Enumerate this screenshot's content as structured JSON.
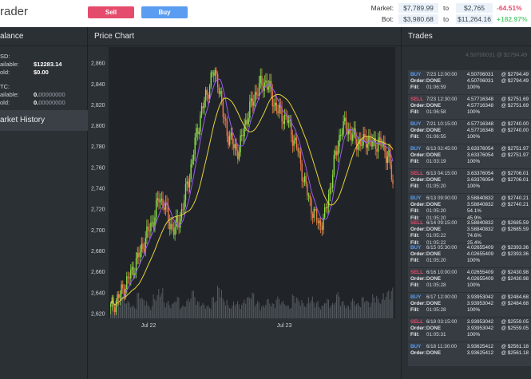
{
  "header": {
    "brand": "rader",
    "sell_label": "Sell",
    "buy_label": "Buy",
    "market_label": "Market:",
    "market_from": "$7,789.99",
    "market_to_word": "to",
    "market_to": "$2,765",
    "market_pct": "-64.51%",
    "bot_label": "Bot:",
    "bot_from": "$3,980.68",
    "bot_to_word": "to",
    "bot_to": "$11,264.16",
    "bot_pct": "+182.97%",
    "colors": {
      "negative": "#e54b6c",
      "positive": "#5fd07a"
    }
  },
  "balance": {
    "title": "alance",
    "usd_heading": "SD:",
    "usd_available_label": "ailable:",
    "usd_available": "$12283.14",
    "usd_hold_label": "old:",
    "usd_hold": "$0.00",
    "btc_heading": "TC:",
    "btc_available_label": "ailable:",
    "btc_available_strong": "0.",
    "btc_available_rest": "00000000",
    "btc_hold_label": "old:",
    "btc_hold_strong": "0.",
    "btc_hold_rest": "00000000"
  },
  "market_history": {
    "title": "arket History"
  },
  "chart": {
    "title": "Price Chart",
    "y_ticks": [
      "2,860",
      "2,840",
      "2,820",
      "2,800",
      "2,780",
      "2,760",
      "2,740",
      "2,720",
      "2,700",
      "2,680",
      "2,660",
      "2,640",
      "2,620"
    ],
    "x_ticks": [
      "Jul 22",
      "Jul 23"
    ]
  },
  "chart_data": {
    "type": "candlestick",
    "ylim": [
      2615,
      2875
    ],
    "y_tick_values": [
      2860,
      2840,
      2820,
      2800,
      2780,
      2760,
      2740,
      2720,
      2700,
      2680,
      2660,
      2640,
      2620
    ],
    "close_path": [
      2625,
      2632,
      2640,
      2650,
      2660,
      2672,
      2685,
      2698,
      2710,
      2730,
      2725,
      2705,
      2700,
      2712,
      2735,
      2760,
      2790,
      2815,
      2830,
      2850,
      2845,
      2810,
      2790,
      2780,
      2775,
      2800,
      2815,
      2830,
      2838,
      2842,
      2830,
      2815,
      2810,
      2805,
      2790,
      2775,
      2750,
      2730,
      2715,
      2705,
      2712,
      2740,
      2770,
      2795,
      2800,
      2790,
      2785,
      2782,
      2788,
      2780,
      2785,
      2778,
      2770,
      2730
    ],
    "volume_levels": [
      0.2,
      0.35,
      0.5,
      0.4,
      0.3,
      0.6,
      0.45,
      0.3,
      0.55,
      0.7,
      0.4,
      0.35,
      0.5,
      0.3,
      0.45,
      0.65,
      0.4,
      0.35,
      0.3,
      0.5,
      0.75,
      0.45,
      0.3,
      0.4,
      0.35,
      0.5,
      0.6,
      0.4,
      0.3,
      0.45,
      0.35,
      0.5,
      0.4,
      0.3,
      0.55,
      0.45,
      0.35,
      0.5,
      0.4,
      0.3,
      0.45,
      0.35,
      0.6,
      0.4,
      0.3,
      0.45,
      0.35,
      0.5,
      0.4,
      0.55,
      0.45,
      0.6,
      0.7,
      0.95
    ],
    "colors": {
      "up": "#8de04a",
      "down": "#f07a4a",
      "ma_fast": "#9a5cf0",
      "ma_slow": "#e8d23a",
      "volume": "#555b61"
    }
  },
  "trades": {
    "title": "Trades",
    "ghost": "4.50706031 @ $2794.49",
    "order_label": "Order:",
    "fill_label": "Fill:",
    "at": "@",
    "items": [
      {
        "side": "BUY",
        "time": "7/23 12:00:00",
        "lines": [
          [
            "4.50706031",
            "$2794.49"
          ]
        ],
        "order": [
          "4.50706031",
          "$2794.49"
        ],
        "fills": [
          [
            "01:06:59",
            "100%"
          ]
        ]
      },
      {
        "side": "SELL",
        "time": "7/23 12:30:00",
        "order": [
          "4.57716348",
          "$2751.69"
        ],
        "lines": [
          [
            "4.57716348",
            "$2751.69"
          ]
        ],
        "fills": [
          [
            "01:06:58",
            "100%"
          ]
        ]
      },
      {
        "side": "BUY",
        "time": "7/21 10:15:00",
        "order": [
          "4.57716348",
          "$2740.00"
        ],
        "lines": [
          [
            "4.57716348",
            "$2740.00"
          ]
        ],
        "fills": [
          [
            "01:06:55",
            "100%"
          ]
        ]
      },
      {
        "side": "BUY",
        "time": "6/13 02:45:00",
        "order": [
          "3.63376054",
          "$2751.97"
        ],
        "lines": [
          [
            "3.63376054",
            "$2751.97"
          ]
        ],
        "fills": [
          [
            "01:03:19",
            "100%"
          ]
        ]
      },
      {
        "side": "SELL",
        "time": "6/13 04:15:00",
        "order": [
          "3.63376054",
          "$2706.01"
        ],
        "lines": [
          [
            "3.63376054",
            "$2706.01"
          ]
        ],
        "fills": [
          [
            "01:05:20",
            "100%"
          ]
        ]
      },
      {
        "side": "BUY",
        "time": "6/13 09:00:00",
        "order": [
          "3.58840832",
          "$2740.21"
        ],
        "lines": [
          [
            "3.58840832",
            "$2740.21"
          ]
        ],
        "fills": [
          [
            "01:05:20",
            "54.1%"
          ],
          [
            "01:05:20",
            "45.9%"
          ]
        ]
      },
      {
        "side": "SELL",
        "time": "6/14 09:15:00",
        "order": [
          "3.58840832",
          "$2685.59"
        ],
        "lines": [
          [
            "3.58840832",
            "$2685.59"
          ]
        ],
        "fills": [
          [
            "01:05:22",
            "74.6%"
          ],
          [
            "01:05:22",
            "25.4%"
          ]
        ]
      },
      {
        "side": "BUY",
        "time": "6/15 05:30:00",
        "order": [
          "4.02655409",
          "$2393.36"
        ],
        "lines": [
          [
            "4.02655409",
            "$2393.36"
          ]
        ],
        "fills": [
          [
            "01:05:20",
            "100%"
          ]
        ]
      },
      {
        "side": "SELL",
        "time": "6/16 10:00:00",
        "order": [
          "4.02655409",
          "$2430.98"
        ],
        "lines": [
          [
            "4.02655409",
            "$2430.98"
          ]
        ],
        "fills": [
          [
            "01:05:28",
            "100%"
          ]
        ]
      },
      {
        "side": "BUY",
        "time": "6/17 12:00:00",
        "order": [
          "3.93953042",
          "$2484.68"
        ],
        "lines": [
          [
            "3.93953042",
            "$2484.68"
          ]
        ],
        "fills": [
          [
            "01:05:28",
            "100%"
          ]
        ]
      },
      {
        "side": "SELL",
        "time": "6/18 03:15:00",
        "order": [
          "3.93953042",
          "$2559.05"
        ],
        "lines": [
          [
            "3.93953042",
            "$2559.05"
          ]
        ],
        "fills": [
          [
            "01:05:31",
            "100%"
          ]
        ]
      },
      {
        "side": "BUY",
        "time": "6/18 11:30:00",
        "order": [
          "3.93625412",
          "$2561.18"
        ],
        "lines": [
          [
            "3.93625412",
            "$2561.18"
          ]
        ],
        "fills": []
      }
    ]
  }
}
